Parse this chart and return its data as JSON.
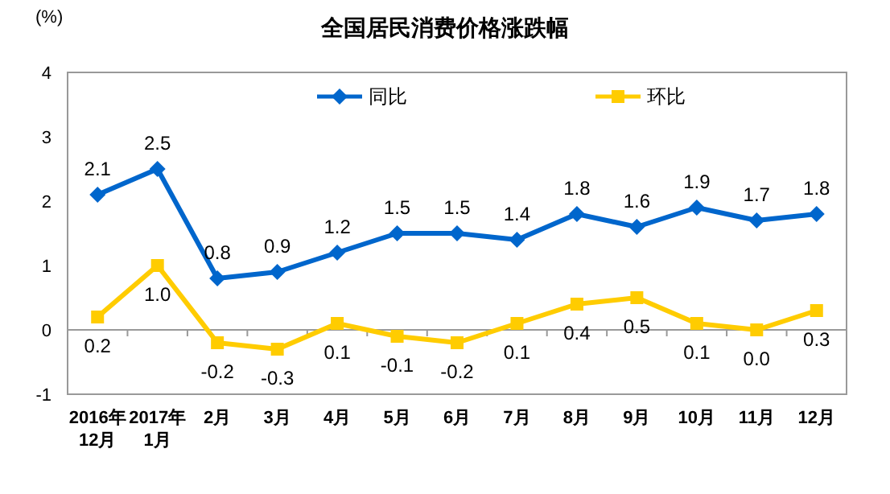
{
  "chart_data": {
    "type": "line",
    "title": "全国居民消费价格涨跌幅",
    "ylabel": "(%)",
    "categories": [
      "2016年\n12月",
      "2017年\n1月",
      "2月",
      "3月",
      "4月",
      "5月",
      "6月",
      "7月",
      "8月",
      "9月",
      "10月",
      "11月",
      "12月"
    ],
    "series": [
      {
        "name": "同比",
        "color": "#0066cc",
        "marker": "diamond",
        "values": [
          2.1,
          2.5,
          0.8,
          0.9,
          1.2,
          1.5,
          1.5,
          1.4,
          1.8,
          1.6,
          1.9,
          1.7,
          1.8
        ],
        "value_labels": [
          "2.1",
          "2.5",
          "0.8",
          "0.9",
          "1.2",
          "1.5",
          "1.5",
          "1.4",
          "1.8",
          "1.6",
          "1.9",
          "1.7",
          "1.8"
        ]
      },
      {
        "name": "环比",
        "color": "#ffcc00",
        "marker": "square",
        "values": [
          0.2,
          1.0,
          -0.2,
          -0.3,
          0.1,
          -0.1,
          -0.2,
          0.1,
          0.4,
          0.5,
          0.1,
          0.0,
          0.3
        ],
        "value_labels": [
          "0.2",
          "1.0",
          "-0.2",
          "-0.3",
          "0.1",
          "-0.1",
          "-0.2",
          "0.1",
          "0.4",
          "0.5",
          "0.1",
          "0.0",
          "0.3"
        ]
      }
    ],
    "ylim": [
      -1,
      4
    ],
    "yticks": [
      -1,
      0,
      1,
      2,
      3,
      4
    ],
    "legend": "top"
  }
}
